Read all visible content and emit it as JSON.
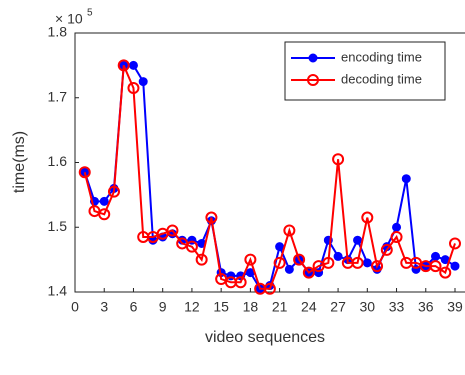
{
  "chart_data": {
    "type": "line",
    "xlabel": "video sequences",
    "ylabel": "time(ms)",
    "y_multiplier": {
      "base": "× 10",
      "exponent": "5"
    },
    "x": [
      1,
      2,
      3,
      4,
      5,
      6,
      7,
      8,
      9,
      10,
      11,
      12,
      13,
      14,
      15,
      16,
      17,
      18,
      19,
      20,
      21,
      22,
      23,
      24,
      25,
      26,
      27,
      28,
      29,
      30,
      31,
      32,
      33,
      34,
      35,
      36,
      37,
      38,
      39
    ],
    "series": [
      {
        "name": "encoding time",
        "color": "#0000ff",
        "marker": "filled",
        "values": [
          1.585,
          1.54,
          1.54,
          1.56,
          1.75,
          1.75,
          1.725,
          1.48,
          1.485,
          1.49,
          1.48,
          1.48,
          1.475,
          1.51,
          1.43,
          1.425,
          1.425,
          1.43,
          1.405,
          1.41,
          1.47,
          1.435,
          1.45,
          1.43,
          1.43,
          1.48,
          1.455,
          1.45,
          1.48,
          1.445,
          1.435,
          1.47,
          1.5,
          1.575,
          1.435,
          1.44,
          1.455,
          1.45,
          1.44
        ]
      },
      {
        "name": "decoding time",
        "color": "#ff0000",
        "marker": "open",
        "values": [
          1.585,
          1.525,
          1.52,
          1.555,
          1.75,
          1.715,
          1.485,
          1.485,
          1.49,
          1.495,
          1.475,
          1.47,
          1.45,
          1.515,
          1.42,
          1.415,
          1.415,
          1.45,
          1.405,
          1.405,
          1.445,
          1.495,
          1.45,
          1.43,
          1.44,
          1.445,
          1.605,
          1.445,
          1.445,
          1.515,
          1.44,
          1.465,
          1.485,
          1.445,
          1.445,
          1.44,
          1.44,
          1.43,
          1.475
        ]
      }
    ],
    "xlim": [
      0,
      39
    ],
    "ylim": [
      1.4,
      1.8
    ],
    "xticks": [
      0,
      3,
      6,
      9,
      12,
      15,
      18,
      21,
      24,
      27,
      30,
      33,
      36,
      39
    ],
    "yticks": [
      1.4,
      1.5,
      1.6,
      1.7,
      1.8
    ],
    "grid": false,
    "legend": "northeast"
  }
}
